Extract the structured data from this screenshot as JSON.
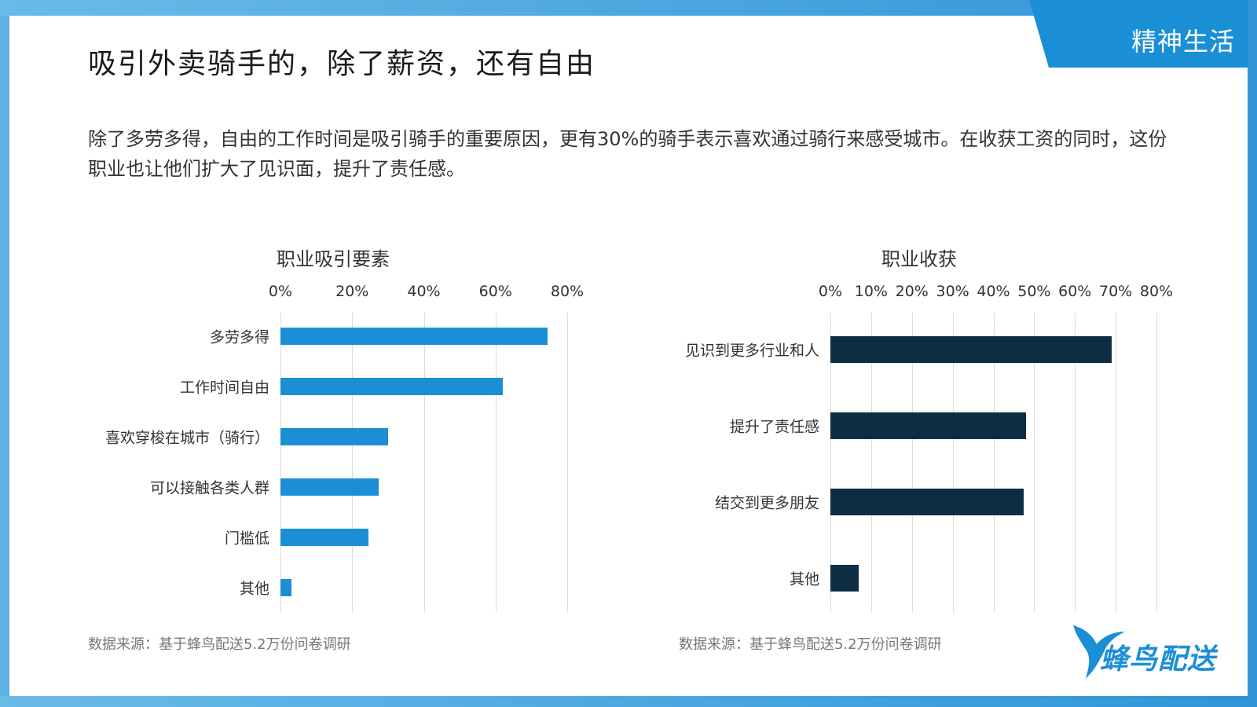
{
  "tag": "精神生活",
  "title": "吸引外卖骑手的，除了薪资，还有自由",
  "description": "除了多劳多得，自由的工作时间是吸引骑手的重要原因，更有30%的骑手表示喜欢通过骑行来感受城市。在收获工资的同时，这份职业也让他们扩大了见识面，提升了责任感。",
  "source_left": "数据来源：基于蜂鸟配送5.2万份问卷调研",
  "source_right": "数据来源：基于蜂鸟配送5.2万份问卷调研",
  "logo_text": "蜂鸟配送",
  "colors": {
    "frame": "#4fa9e0",
    "tag": "#1b8fd6",
    "bar_left": "#1b8fd6",
    "bar_right": "#0d2d44"
  },
  "chart_data": [
    {
      "type": "bar",
      "orientation": "horizontal",
      "title": "职业吸引要素",
      "categories": [
        "多劳多得",
        "工作时间自由",
        "喜欢穿梭在城市（骑行）",
        "可以接触各类人群",
        "门槛低",
        "其他"
      ],
      "values": [
        74.5,
        62,
        30,
        27.5,
        24.5,
        3
      ],
      "xlim": [
        0,
        80
      ],
      "ticks": [
        "0%",
        "20%",
        "40%",
        "60%",
        "80%"
      ],
      "tick_values": [
        0,
        20,
        40,
        60,
        80
      ],
      "axis_position": "top",
      "grid": true
    },
    {
      "type": "bar",
      "orientation": "horizontal",
      "title": "职业收获",
      "categories": [
        "见识到更多行业和人",
        "提升了责任感",
        "结交到更多朋友",
        "其他"
      ],
      "values": [
        69,
        48,
        47.5,
        7
      ],
      "xlim": [
        0,
        80
      ],
      "ticks": [
        "0%",
        "10%",
        "20%",
        "30%",
        "40%",
        "50%",
        "60%",
        "70%",
        "80%"
      ],
      "tick_values": [
        0,
        10,
        20,
        30,
        40,
        50,
        60,
        70,
        80
      ],
      "axis_position": "top",
      "grid": true
    }
  ]
}
